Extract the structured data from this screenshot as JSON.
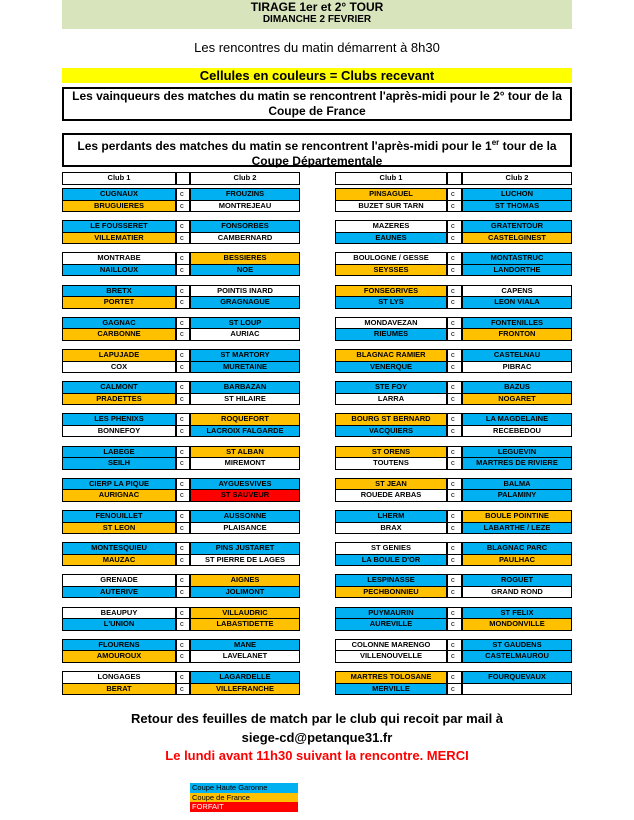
{
  "header": {
    "title": "TIRAGE 1er et 2° TOUR",
    "date": "DIMANCHE 2 FEVRIER"
  },
  "start_note": "Les rencontres du matin démarrent à 8h30",
  "color_note": "Cellules en couleurs = Clubs recevant",
  "winners_note": "Les vainqueurs des matches du matin se rencontrent l'après-midi pour le 2° tour de la Coupe de France",
  "losers_note": [
    "Les perdants des matches du matin se rencontrent l'après-midi pour le 1",
    "er",
    " tour de la Coupe Départementale"
  ],
  "tables": [
    {
      "header": [
        "Club 1",
        "Club 2"
      ],
      "pairs": [
        [
          [
            "CUGNAUX",
            "#00b0f0",
            "c",
            "FROUZINS",
            "#00b0f0"
          ],
          [
            "BRUGUIERES",
            "#ffc000",
            "c",
            "MONTREJEAU",
            "#ffffff"
          ]
        ],
        [
          [
            "LE FOUSSERET",
            "#00b0f0",
            "c",
            "FONSORBES",
            "#00b0f0"
          ],
          [
            "VILLEMATIER",
            "#ffc000",
            "c",
            "CAMBERNARD",
            "#ffffff"
          ]
        ],
        [
          [
            "MONTRABE",
            "#ffffff",
            "c",
            "BESSIERES",
            "#ffc000"
          ],
          [
            "NAILLOUX",
            "#00b0f0",
            "c",
            "NOE",
            "#00b0f0"
          ]
        ],
        [
          [
            "BRETX",
            "#00b0f0",
            "c",
            "POINTIS INARD",
            "#ffffff"
          ],
          [
            "PORTET",
            "#ffc000",
            "c",
            "GRAGNAGUE",
            "#00b0f0"
          ]
        ],
        [
          [
            "GAGNAC",
            "#00b0f0",
            "c",
            "ST LOUP",
            "#00b0f0"
          ],
          [
            "CARBONNE",
            "#ffc000",
            "c",
            "AURIAC",
            "#ffffff"
          ]
        ],
        [
          [
            "LAPUJADE",
            "#ffc000",
            "c",
            "ST MARTORY",
            "#00b0f0"
          ],
          [
            "COX",
            "#ffffff",
            "c",
            "MURETAINE",
            "#00b0f0"
          ]
        ],
        [
          [
            "CALMONT",
            "#00b0f0",
            "c",
            "BARBAZAN",
            "#00b0f0"
          ],
          [
            "PRADETTES",
            "#ffc000",
            "c",
            "ST HILAIRE",
            "#ffffff"
          ]
        ],
        [
          [
            "LES PHENIXS",
            "#00b0f0",
            "c",
            "ROQUEFORT",
            "#ffc000"
          ],
          [
            "BONNEFOY",
            "#ffffff",
            "c",
            "LACROIX FALGARDE",
            "#00b0f0"
          ]
        ],
        [
          [
            "LABEGE",
            "#00b0f0",
            "c",
            "ST ALBAN",
            "#ffc000"
          ],
          [
            "SEILH",
            "#00b0f0",
            "c",
            "MIREMONT",
            "#ffffff"
          ]
        ],
        [
          [
            "CIERP LA PIQUE",
            "#00b0f0",
            "c",
            "AYGUESVIVES",
            "#00b0f0"
          ],
          [
            "AURIGNAC",
            "#ffc000",
            "c",
            "ST SAUVEUR",
            "#ff0000"
          ]
        ],
        [
          [
            "FENOUILLET",
            "#00b0f0",
            "c",
            "AUSSONNE",
            "#00b0f0"
          ],
          [
            "ST LEON",
            "#ffc000",
            "c",
            "PLAISANCE",
            "#ffffff"
          ]
        ],
        [
          [
            "MONTESQUIEU",
            "#00b0f0",
            "c",
            "PINS JUSTARET",
            "#00b0f0"
          ],
          [
            "MAUZAC",
            "#ffc000",
            "c",
            "ST PIERRE DE LAGES",
            "#ffffff"
          ]
        ],
        [
          [
            "GRENADE",
            "#ffffff",
            "c",
            "AIGNES",
            "#ffc000"
          ],
          [
            "AUTERIVE",
            "#00b0f0",
            "c",
            "JOLIMONT",
            "#00b0f0"
          ]
        ],
        [
          [
            "BEAUPUY",
            "#ffffff",
            "c",
            "VILLAUDRIC",
            "#ffc000"
          ],
          [
            "L'UNION",
            "#00b0f0",
            "c",
            "LABASTIDETTE",
            "#ffc000"
          ]
        ],
        [
          [
            "FLOURENS",
            "#00b0f0",
            "c",
            "MANE",
            "#00b0f0"
          ],
          [
            "AMOUROUX",
            "#ffc000",
            "c",
            "LAVELANET",
            "#ffffff"
          ]
        ],
        [
          [
            "LONGAGES",
            "#ffffff",
            "c",
            "LAGARDELLE",
            "#00b0f0"
          ],
          [
            "BERAT",
            "#ffc000",
            "c",
            "VILLEFRANCHE",
            "#ffc000"
          ]
        ]
      ]
    },
    {
      "header": [
        "Club 1",
        "Club 2"
      ],
      "pairs": [
        [
          [
            "PINSAGUEL",
            "#ffc000",
            "c",
            "LUCHON",
            "#00b0f0"
          ],
          [
            "BUZET SUR TARN",
            "#ffffff",
            "c",
            "ST THOMAS",
            "#00b0f0"
          ]
        ],
        [
          [
            "MAZERES",
            "#ffffff",
            "c",
            "GRATENTOUR",
            "#00b0f0"
          ],
          [
            "EAUNES",
            "#00b0f0",
            "c",
            "CASTELGINEST",
            "#ffc000"
          ]
        ],
        [
          [
            "BOULOGNE / GESSE",
            "#ffffff",
            "c",
            "MONTASTRUC",
            "#00b0f0"
          ],
          [
            "SEYSSES",
            "#ffc000",
            "c",
            "LANDORTHE",
            "#00b0f0"
          ]
        ],
        [
          [
            "FONSEGRIVES",
            "#ffc000",
            "c",
            "CAPENS",
            "#ffffff"
          ],
          [
            "ST LYS",
            "#00b0f0",
            "c",
            "LEON VIALA",
            "#00b0f0"
          ]
        ],
        [
          [
            "MONDAVEZAN",
            "#ffffff",
            "c",
            "FONTENILLES",
            "#00b0f0"
          ],
          [
            "RIEUMES",
            "#00b0f0",
            "c",
            "FRONTON",
            "#ffc000"
          ]
        ],
        [
          [
            "BLAGNAC RAMIER",
            "#ffc000",
            "c",
            "CASTELNAU",
            "#00b0f0"
          ],
          [
            "VENERQUE",
            "#00b0f0",
            "c",
            "PIBRAC",
            "#ffffff"
          ]
        ],
        [
          [
            "STE FOY",
            "#00b0f0",
            "c",
            "BAZUS",
            "#00b0f0"
          ],
          [
            "LARRA",
            "#ffffff",
            "c",
            "NOGARET",
            "#ffc000"
          ]
        ],
        [
          [
            "BOURG ST BERNARD",
            "#ffc000",
            "c",
            "LA MAGDELAINE",
            "#00b0f0"
          ],
          [
            "VACQUIERS",
            "#00b0f0",
            "c",
            "RECEBEDOU",
            "#ffffff"
          ]
        ],
        [
          [
            "ST ORENS",
            "#ffc000",
            "c",
            "LEGUEVIN",
            "#00b0f0"
          ],
          [
            "TOUTENS",
            "#ffffff",
            "c",
            "MARTRES DE RIVIERE",
            "#00b0f0"
          ]
        ],
        [
          [
            "ST JEAN",
            "#ffc000",
            "c",
            "BALMA",
            "#00b0f0"
          ],
          [
            "ROUEDE ARBAS",
            "#ffffff",
            "c",
            "PALAMINY",
            "#00b0f0"
          ]
        ],
        [
          [
            "LHERM",
            "#00b0f0",
            "c",
            "BOULE POINTINE",
            "#ffc000"
          ],
          [
            "BRAX",
            "#ffffff",
            "c",
            "LABARTHE / LEZE",
            "#00b0f0"
          ]
        ],
        [
          [
            "ST GENIES",
            "#ffffff",
            "c",
            "BLAGNAC PARC",
            "#00b0f0"
          ],
          [
            "LA BOULE D'OR",
            "#00b0f0",
            "c",
            "PAULHAC",
            "#ffc000"
          ]
        ],
        [
          [
            "LESPINASSE",
            "#00b0f0",
            "c",
            "ROGUET",
            "#00b0f0"
          ],
          [
            "PECHBONNIEU",
            "#ffc000",
            "c",
            "GRAND ROND",
            "#ffffff"
          ]
        ],
        [
          [
            "PUYMAURIN",
            "#00b0f0",
            "c",
            "ST FELIX",
            "#00b0f0"
          ],
          [
            "AUREVILLE",
            "#00b0f0",
            "c",
            "MONDONVILLE",
            "#ffc000"
          ]
        ],
        [
          [
            "COLONNE MARENGO",
            "#ffffff",
            "c",
            "ST GAUDENS",
            "#00b0f0"
          ],
          [
            "VILLENOUVELLE",
            "#ffffff",
            "c",
            "CASTELMAUROU",
            "#00b0f0"
          ]
        ],
        [
          [
            "MARTRES TOLOSANE",
            "#ffc000",
            "c",
            "FOURQUEVAUX",
            "#00b0f0"
          ],
          [
            "MERVILLE",
            "#00b0f0",
            "c",
            null,
            "#ffffff"
          ]
        ]
      ]
    }
  ],
  "footer": {
    "line1": "Retour des feuilles de match par le club qui recoit par mail à",
    "email": "siege-cd@petanque31.fr",
    "deadline": "Le lundi avant 11h30 suivant la rencontre. MERCI"
  },
  "legend": [
    [
      "Coupe Haute Garonne",
      "#00b0f0"
    ],
    [
      "Coupe de France",
      "#ffc000"
    ],
    [
      "FORFAIT",
      "#ff0000"
    ]
  ]
}
